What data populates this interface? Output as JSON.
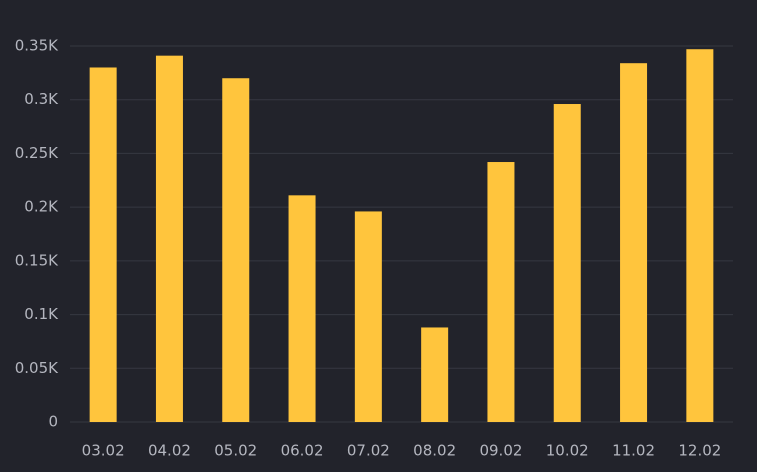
{
  "chart_data": {
    "type": "bar",
    "categories": [
      "03.02",
      "04.02",
      "05.02",
      "06.02",
      "07.02",
      "08.02",
      "09.02",
      "10.02",
      "11.02",
      "12.02"
    ],
    "values": [
      330,
      341,
      320,
      211,
      196,
      88,
      242,
      296,
      334,
      347
    ],
    "color": "#ffc53d",
    "ylim": [
      0,
      350
    ],
    "yticks": [
      0,
      {
        "value": 50,
        "label": "0.05K"
      },
      {
        "value": 100,
        "label": "0.1K"
      },
      {
        "value": 150,
        "label": "0.15K"
      },
      {
        "value": 200,
        "label": "0.2K"
      },
      {
        "value": 250,
        "label": "0.25K"
      },
      {
        "value": 300,
        "label": "0.3K"
      },
      {
        "value": 350,
        "label": "0.35K"
      }
    ],
    "grid": true
  }
}
